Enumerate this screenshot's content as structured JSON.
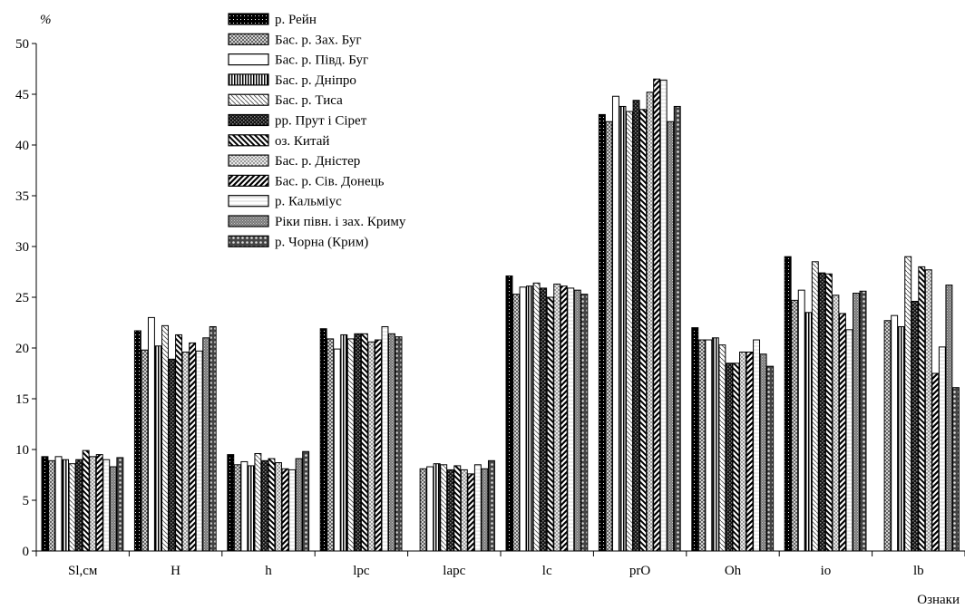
{
  "chart_data": {
    "type": "bar",
    "ylabel": "%",
    "xlabel": "Ознаки",
    "ylim": [
      0,
      50
    ],
    "yticks": [
      0,
      5,
      10,
      15,
      20,
      25,
      30,
      35,
      40,
      45,
      50
    ],
    "categories": [
      "Sl,см",
      "H",
      "h",
      "lpc",
      "lapc",
      "lc",
      "prO",
      "Oh",
      "io",
      "lb"
    ],
    "legend_position": "top-left",
    "series": [
      {
        "name": "р. Рейн",
        "pattern": "dots-dark",
        "values": [
          9.3,
          21.7,
          9.5,
          21.9,
          null,
          27.1,
          43.0,
          22.0,
          29.0,
          null
        ]
      },
      {
        "name": "Бас. р. Зах. Буг",
        "pattern": "cross-gray",
        "values": [
          8.9,
          19.8,
          8.5,
          20.9,
          8.1,
          25.3,
          42.3,
          20.8,
          24.7,
          22.7
        ]
      },
      {
        "name": "Бас. р. Півд. Буг",
        "pattern": "empty",
        "values": [
          9.3,
          23.0,
          8.8,
          19.9,
          8.3,
          26.0,
          44.8,
          20.8,
          25.7,
          23.2
        ]
      },
      {
        "name": "Бас. р. Дніпро",
        "pattern": "vertical",
        "values": [
          9.0,
          20.2,
          8.4,
          21.3,
          8.6,
          26.1,
          43.8,
          21.0,
          23.5,
          22.1
        ]
      },
      {
        "name": "Бас. р. Тиса",
        "pattern": "diag-light",
        "values": [
          8.6,
          22.2,
          9.6,
          20.9,
          8.5,
          26.4,
          43.3,
          20.3,
          28.5,
          29.0
        ]
      },
      {
        "name": "рр. Прут і Сірет",
        "pattern": "checker-dark",
        "values": [
          9.0,
          18.9,
          8.9,
          21.4,
          8.0,
          25.9,
          44.4,
          18.5,
          27.4,
          24.6
        ]
      },
      {
        "name": "оз. Китай",
        "pattern": "diag-bold",
        "values": [
          9.9,
          21.3,
          9.1,
          21.4,
          8.4,
          25.0,
          43.5,
          18.5,
          27.3,
          28.0
        ]
      },
      {
        "name": "Бас. р. Дністер",
        "pattern": "cross-light",
        "values": [
          9.3,
          19.6,
          8.7,
          20.6,
          8.0,
          26.3,
          45.2,
          19.6,
          25.2,
          27.7
        ]
      },
      {
        "name": "Бас. р. Сів. Донець",
        "pattern": "diag-heavy",
        "values": [
          9.5,
          20.5,
          8.1,
          20.8,
          7.6,
          26.1,
          46.5,
          19.6,
          23.4,
          17.5
        ]
      },
      {
        "name": "р. Кальміус",
        "pattern": "hline",
        "values": [
          9.0,
          19.7,
          8.0,
          22.1,
          8.5,
          25.9,
          46.4,
          20.8,
          21.8,
          20.1
        ]
      },
      {
        "name": "Ріки півн. і зах. Криму",
        "pattern": "dense-gray",
        "values": [
          8.3,
          21.0,
          9.1,
          21.4,
          8.1,
          25.7,
          42.3,
          19.4,
          25.4,
          26.2
        ]
      },
      {
        "name": "р. Чорна (Крим)",
        "pattern": "circles",
        "values": [
          9.2,
          22.1,
          9.8,
          21.1,
          8.9,
          25.3,
          43.8,
          18.2,
          25.6,
          16.1
        ]
      }
    ]
  }
}
